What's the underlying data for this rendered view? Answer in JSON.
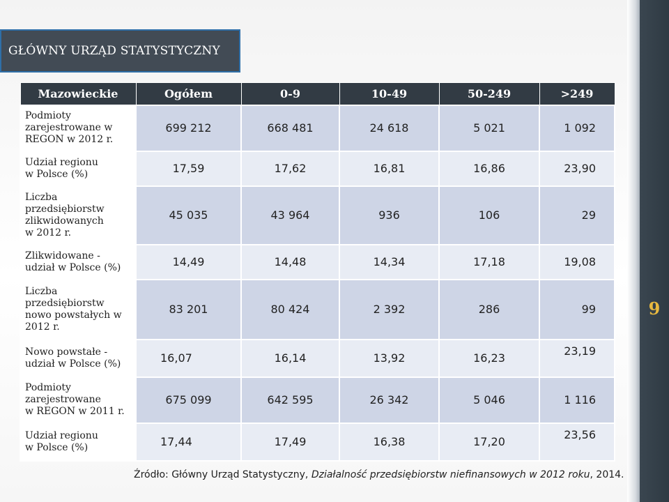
{
  "header": {
    "title": "GŁÓWNY URZĄD STATYSTYCZNY"
  },
  "table": {
    "columns": [
      "Mazowieckie",
      "Ogółem",
      "0-9",
      "10-49",
      "50-249",
      ">249"
    ],
    "rows": [
      {
        "label": "Podmioty\nzarejestrowane w\nREGON w 2012 r.",
        "values": [
          "699 212",
          "668 481",
          "24 618",
          "5 021",
          "1 092"
        ]
      },
      {
        "label": "Udział regionu\n w Polsce (%)",
        "values": [
          "17,59",
          "17,62",
          "16,81",
          "16,86",
          "23,90"
        ]
      },
      {
        "label": "Liczba\nprzedsiębiorstw\nzlikwidowanych\n w 2012 r.",
        "values": [
          "45 035",
          "43 964",
          "936",
          "106",
          "29"
        ]
      },
      {
        "label": "Zlikwidowane -\nudział w Polsce (%)",
        "values": [
          "14,49",
          "14,48",
          "14,34",
          "17,18",
          "19,08"
        ]
      },
      {
        "label": "Liczba\nprzedsiębiorstw\nnowo powstałych w\n2012 r.",
        "values": [
          "83 201",
          "80 424",
          "2 392",
          "286",
          "99"
        ]
      },
      {
        "label": "Nowo powstałe -\nudział w Polsce (%)",
        "values": [
          "16,07",
          "16,14",
          "13,92",
          "16,23",
          "23,19"
        ]
      },
      {
        "label": "Podmioty\nzarejestrowane\nw REGON w 2011 r.",
        "values": [
          "675 099",
          "642 595",
          "26 342",
          "5 046",
          "1 116"
        ]
      },
      {
        "label": "Udział regionu\nw Polsce (%)",
        "values": [
          "17,44",
          "17,49",
          "16,38",
          "17,20",
          "23,56"
        ]
      }
    ]
  },
  "source": {
    "prefix": "Źródło: Główny Urząd Statystyczny, ",
    "title": "Działalność przedsiębiorstw niefinansowych w 2012 roku",
    "suffix": ", 2014."
  },
  "slide_number": "9",
  "colors": {
    "header_bg": "#424b55",
    "header_border": "#2f6fa8",
    "table_header_bg": "#323b44",
    "row_odd": "#ced5e6",
    "row_even": "#e8ecf4",
    "slide_number": "#e9b93f"
  }
}
